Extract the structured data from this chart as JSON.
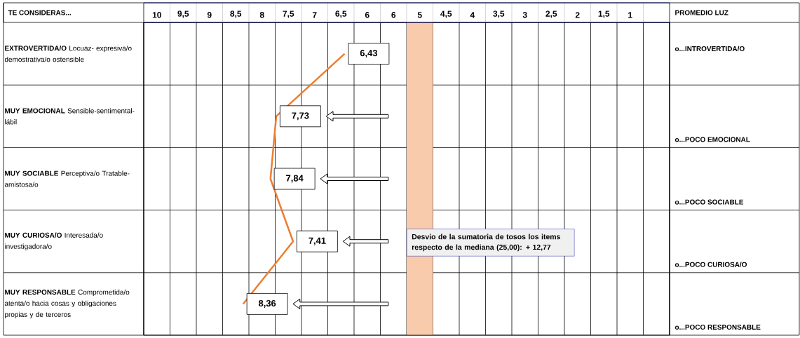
{
  "chart_data": {
    "type": "line",
    "ylabel": "TE CONSIDERAS...",
    "categories": [
      "**EXTROVERTIDA/O** Locuaz- expresiva/o demostrativa/o ostensible",
      "**MUY EMOCIONAL** Sensible-sentimental-lábil",
      "**MUY SOCIABLE** Perceptiva/o Tratable-amistosa/o",
      "**MUY CURIOSA/O** Interesada/o investigadora/o",
      "**MUY RESPONSABLE** Comprometida/o atenta/o hacia cosas y obligaciones propias y de terceros"
    ],
    "orientation": "horizontal",
    "values": [
      6.43,
      7.73,
      7.84,
      7.41,
      8.36
    ],
    "value_labels": [
      "6,43",
      "7,73",
      "7,84",
      "7,41",
      "8,36"
    ],
    "color": "#ed7d31",
    "xlim": [
      10.25,
      0.25
    ],
    "xticks": [
      10,
      {
        "value": 9.5,
        "label": "9,5"
      },
      9,
      {
        "value": 8.5,
        "label": "8,5"
      },
      8,
      {
        "value": 7.5,
        "label": "7,5"
      },
      7,
      {
        "value": 6.5,
        "label": "6,5"
      },
      6,
      {
        "value": 5.5,
        "label": "6"
      },
      5,
      {
        "value": 4.5,
        "label": "4,5"
      },
      4,
      {
        "value": 3.5,
        "label": "3,5"
      },
      3,
      {
        "value": 2.5,
        "label": "2,5"
      },
      2,
      {
        "value": 1.5,
        "label": "1,5"
      },
      1
    ],
    "grid": true,
    "bands": [
      {
        "axis": "x",
        "from": 5.25,
        "to": 4.75,
        "color": "#f8cbad"
      }
    ],
    "annotations": [
      "o...INTROVERTIDA/O",
      "o...POCO EMOCIONAL",
      "o...POCO SOCIABLE",
      "o...POCO CURIOSA/O",
      "o...POCO RESPONSABLE",
      "PROMEDIO LUZ",
      "Desvio de la sumatoria de tosos los items respecto de la mediana (25,00): + 12,77"
    ]
  }
}
